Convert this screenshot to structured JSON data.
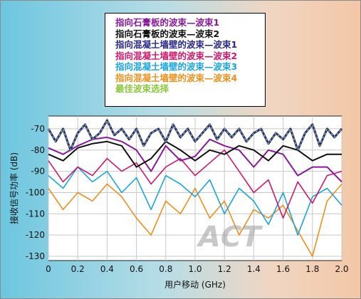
{
  "chart_data": {
    "type": "line",
    "xlabel": "用户移动 (GHz)",
    "ylabel": "接收信号功率 (dB)",
    "xlim": [
      0,
      2.0
    ],
    "ylim": [
      -132,
      -64
    ],
    "x_ticks": [
      "0",
      "0.2",
      "0.4",
      "0.6",
      "0.8",
      "1.0",
      "1.2",
      "1.4",
      "1.6",
      "1.8",
      "2.0"
    ],
    "y_ticks": [
      "-70",
      "-80",
      "-90",
      "-100",
      "-110",
      "-120",
      "-130"
    ],
    "grid": true,
    "legend_position": "top-center",
    "watermark": "ACT",
    "series": [
      {
        "name": "指向石膏板的波束—波束1",
        "color": "#8a1a9c",
        "x": [
          0,
          0.1,
          0.2,
          0.3,
          0.4,
          0.5,
          0.6,
          0.7,
          0.8,
          0.9,
          1.0,
          1.1,
          1.2,
          1.3,
          1.4,
          1.5,
          1.6,
          1.7,
          1.8,
          1.9,
          2.0
        ],
        "y": [
          -79,
          -82,
          -78,
          -75,
          -74,
          -76,
          -80,
          -90,
          -78,
          -85,
          -83,
          -75,
          -78,
          -80,
          -88,
          -80,
          -82,
          -92,
          -88,
          -88,
          -95
        ]
      },
      {
        "name": "指向石膏板的波束—波束2",
        "color": "#111111",
        "x": [
          0,
          0.1,
          0.2,
          0.3,
          0.4,
          0.5,
          0.6,
          0.7,
          0.8,
          0.9,
          1.0,
          1.1,
          1.2,
          1.3,
          1.4,
          1.5,
          1.6,
          1.7,
          1.8,
          1.9,
          2.0
        ],
        "y": [
          -82,
          -85,
          -79,
          -77,
          -76,
          -78,
          -88,
          -84,
          -76,
          -80,
          -85,
          -80,
          -82,
          -78,
          -80,
          -85,
          -78,
          -80,
          -85,
          -82,
          -82
        ]
      },
      {
        "name": "指向混凝土墙壁的波束—波束1",
        "color": "#2a2a8c",
        "x": [
          0,
          0.05,
          0.1,
          0.15,
          0.2,
          0.25,
          0.3,
          0.35,
          0.4,
          0.45,
          0.5,
          0.55,
          0.6,
          0.65,
          0.7,
          0.75,
          0.8,
          0.85,
          0.9,
          0.95,
          1.0,
          1.05,
          1.1,
          1.15,
          1.2,
          1.25,
          1.3,
          1.35,
          1.4,
          1.45,
          1.5,
          1.55,
          1.6,
          1.65,
          1.7,
          1.75,
          1.8,
          1.85,
          1.9,
          1.95,
          2.0
        ],
        "y": [
          -70,
          -76,
          -70,
          -80,
          -72,
          -68,
          -75,
          -72,
          -66,
          -73,
          -70,
          -75,
          -70,
          -78,
          -72,
          -70,
          -76,
          -68,
          -74,
          -70,
          -76,
          -72,
          -68,
          -75,
          -70,
          -74,
          -70,
          -76,
          -72,
          -70,
          -77,
          -72,
          -75,
          -70,
          -80,
          -72,
          -68,
          -78,
          -70,
          -74,
          -70
        ]
      },
      {
        "name": "指向混凝土墙壁的波束—波束2",
        "color": "#d0186a",
        "x": [
          0,
          0.1,
          0.2,
          0.3,
          0.4,
          0.5,
          0.6,
          0.7,
          0.8,
          0.9,
          1.0,
          1.1,
          1.2,
          1.3,
          1.4,
          1.5,
          1.6,
          1.7,
          1.8,
          1.9,
          2.0
        ],
        "y": [
          -85,
          -95,
          -88,
          -92,
          -84,
          -90,
          -86,
          -96,
          -88,
          -84,
          -92,
          -86,
          -80,
          -90,
          -100,
          -94,
          -112,
          -95,
          -105,
          -92,
          -90
        ]
      },
      {
        "name": "指向混凝土墙壁的波束—波束3",
        "color": "#1aa6e0",
        "x": [
          0,
          0.1,
          0.2,
          0.3,
          0.4,
          0.5,
          0.6,
          0.7,
          0.8,
          0.9,
          1.0,
          1.1,
          1.2,
          1.3,
          1.4,
          1.5,
          1.6,
          1.7,
          1.8,
          1.9,
          2.0
        ],
        "y": [
          -92,
          -98,
          -88,
          -95,
          -90,
          -100,
          -93,
          -108,
          -92,
          -96,
          -102,
          -94,
          -110,
          -98,
          -104,
          -115,
          -100,
          -120,
          -102,
          -98,
          -106
        ]
      },
      {
        "name": "指向混凝土墙壁的波束—波束4",
        "color": "#f0901a",
        "x": [
          0,
          0.1,
          0.2,
          0.3,
          0.4,
          0.5,
          0.6,
          0.7,
          0.8,
          0.9,
          1.0,
          1.1,
          1.2,
          1.3,
          1.4,
          1.5,
          1.6,
          1.7,
          1.8,
          1.9,
          2.0
        ],
        "y": [
          -98,
          -108,
          -100,
          -104,
          -96,
          -102,
          -112,
          -120,
          -104,
          -110,
          -98,
          -112,
          -104,
          -120,
          -108,
          -112,
          -106,
          -118,
          -130,
          -104,
          -96
        ]
      },
      {
        "name": "最佳波束选择",
        "color": "#8cc83c",
        "x": [
          0,
          0.05,
          0.1,
          0.15,
          0.2,
          0.25,
          0.3,
          0.35,
          0.4,
          0.45,
          0.5,
          0.55,
          0.6,
          0.65,
          0.7,
          0.75,
          0.8,
          0.85,
          0.9,
          0.95,
          1.0,
          1.05,
          1.1,
          1.15,
          1.2,
          1.25,
          1.3,
          1.35,
          1.4,
          1.45,
          1.5,
          1.55,
          1.6,
          1.65,
          1.7,
          1.75,
          1.8,
          1.85,
          1.9,
          1.95,
          2.0
        ],
        "y": [
          -70,
          -76,
          -70,
          -80,
          -72,
          -68,
          -75,
          -72,
          -66,
          -73,
          -70,
          -75,
          -70,
          -78,
          -72,
          -70,
          -76,
          -68,
          -74,
          -70,
          -76,
          -72,
          -68,
          -75,
          -70,
          -74,
          -70,
          -76,
          -72,
          -70,
          -77,
          -72,
          -75,
          -70,
          -80,
          -72,
          -68,
          -78,
          -70,
          -74,
          -70
        ]
      }
    ]
  }
}
